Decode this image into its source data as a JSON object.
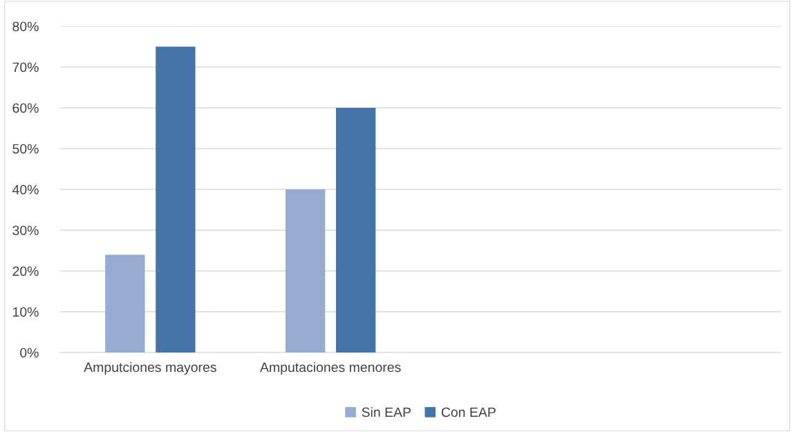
{
  "chart_data": {
    "type": "bar",
    "categories": [
      "Amputciones mayores",
      "Amputaciones menores",
      null,
      null
    ],
    "series": [
      {
        "name": "Sin EAP",
        "color": "#97abd2",
        "values": [
          24,
          40,
          null,
          null
        ]
      },
      {
        "name": "Con EAP",
        "color": "#4673a8",
        "values": [
          75,
          60,
          null,
          null
        ]
      }
    ],
    "ylim": [
      0,
      80
    ],
    "yticks": [
      {
        "value": 0,
        "label": "0%"
      },
      {
        "value": 10,
        "label": "10%"
      },
      {
        "value": 20,
        "label": "20%"
      },
      {
        "value": 30,
        "label": "30%"
      },
      {
        "value": 40,
        "label": "40%"
      },
      {
        "value": 50,
        "label": "50%"
      },
      {
        "value": 60,
        "label": "60%"
      },
      {
        "value": 70,
        "label": "70%"
      },
      {
        "value": 80,
        "label": "80%"
      }
    ],
    "grid": "y",
    "legend": "bottom"
  }
}
